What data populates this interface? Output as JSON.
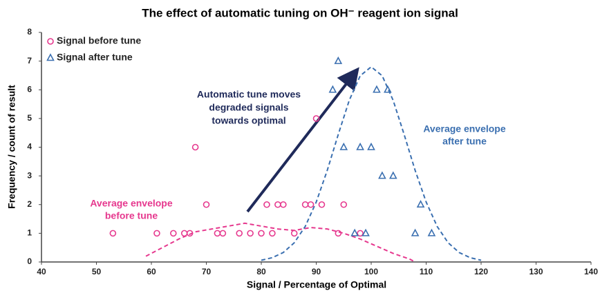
{
  "chart_data": {
    "type": "scatter",
    "title": "The effect of automatic tuning on OH⁻ reagent ion signal",
    "x_label": "Signal / Percentage of Optimal",
    "y_label": "Frequency / count of result",
    "xlim": [
      40,
      140
    ],
    "xticks": [
      40,
      50,
      60,
      70,
      80,
      90,
      100,
      110,
      120,
      130,
      140
    ],
    "ylim": [
      0,
      8
    ],
    "yticks": [
      0,
      1,
      2,
      3,
      4,
      5,
      6,
      7,
      8
    ],
    "legend": "upper left",
    "series": [
      {
        "name": "Signal before tune",
        "color": "#e6388e",
        "marker": "circle",
        "x": [
          53,
          61,
          64,
          66,
          67,
          68,
          70,
          72,
          73,
          76,
          78,
          80,
          82,
          81,
          83,
          84,
          86,
          88,
          89,
          90,
          91,
          94,
          95,
          98
        ],
        "values": [
          1,
          1,
          1,
          1,
          1,
          4,
          2,
          1,
          1,
          1,
          1,
          1,
          1,
          2,
          2,
          2,
          1,
          2,
          2,
          5,
          2,
          1,
          2,
          1
        ]
      },
      {
        "name": "Signal after tune",
        "color": "#3a6fb0",
        "marker": "triangle",
        "x": [
          94,
          93,
          101,
          103,
          95,
          98,
          100,
          102,
          104,
          109,
          97,
          99,
          108,
          111
        ],
        "values": [
          7,
          6,
          6,
          6,
          4,
          4,
          4,
          3,
          3,
          2,
          1,
          1,
          1,
          1
        ]
      }
    ],
    "envelopes": [
      {
        "label": [
          "Average envelope",
          "before tune"
        ],
        "color": "#e6388e",
        "x": [
          59,
          62,
          65,
          68,
          71,
          74,
          77,
          80,
          83,
          86,
          89,
          92,
          95,
          98,
          101,
          104,
          107,
          108
        ],
        "values": [
          0.2,
          0.5,
          0.8,
          1.05,
          1.15,
          1.25,
          1.35,
          1.25,
          1.15,
          1.1,
          1.2,
          1.15,
          1.0,
          0.8,
          0.55,
          0.3,
          0.1,
          0
        ]
      },
      {
        "label": [
          "Average envelope",
          "after tune"
        ],
        "color": "#3a6fb0",
        "x": [
          80,
          82,
          84,
          86,
          88,
          90,
          92,
          94,
          96,
          98,
          100,
          102,
          104,
          106,
          108,
          110,
          112,
          114,
          116,
          118,
          120
        ],
        "values": [
          0.06,
          0.15,
          0.33,
          0.67,
          1.24,
          2.09,
          3.19,
          4.44,
          5.63,
          6.49,
          6.8,
          6.49,
          5.63,
          4.44,
          3.19,
          2.09,
          1.24,
          0.67,
          0.33,
          0.15,
          0.06
        ]
      }
    ],
    "arrow_annotation": [
      "Automatic tune moves",
      "degraded signals",
      "towards optimal"
    ]
  }
}
